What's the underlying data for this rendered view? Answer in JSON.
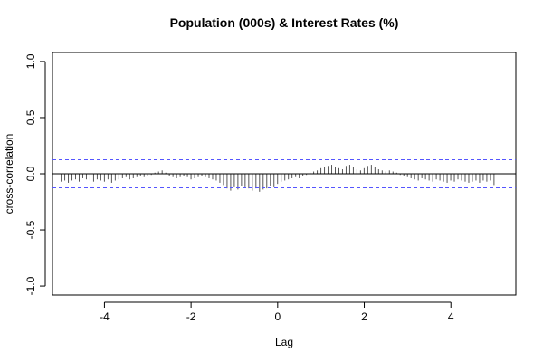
{
  "chart_data": {
    "type": "bar",
    "title": "Population (000s) & Interest Rates (%)",
    "xlabel": "Lag",
    "ylabel": "cross-correlation",
    "xlim": [
      -5.2,
      5.5
    ],
    "ylim": [
      -1.08,
      1.08
    ],
    "x_ticks": [
      -4,
      -2,
      0,
      2,
      4
    ],
    "y_ticks": [
      -1.0,
      -0.5,
      0.0,
      0.5,
      1.0
    ],
    "x_tick_labels": [
      "-4",
      "-2",
      "0",
      "2",
      "4"
    ],
    "y_tick_labels": [
      "-1.0",
      "-0.5",
      "0.0",
      "0.5",
      "1.0"
    ],
    "confidence_bound": 0.125,
    "lag_start": -5.0,
    "lag_step": 0.0833,
    "values": [
      -0.07,
      -0.06,
      -0.08,
      -0.06,
      -0.05,
      -0.07,
      -0.04,
      -0.05,
      -0.06,
      -0.07,
      -0.05,
      -0.06,
      -0.07,
      -0.05,
      -0.08,
      -0.06,
      -0.05,
      -0.04,
      -0.03,
      -0.05,
      -0.04,
      -0.03,
      -0.02,
      -0.03,
      -0.02,
      -0.01,
      0.01,
      0.02,
      0.03,
      0.01,
      -0.02,
      -0.03,
      -0.04,
      -0.03,
      -0.02,
      -0.03,
      -0.05,
      -0.04,
      -0.03,
      -0.02,
      -0.03,
      -0.04,
      -0.05,
      -0.06,
      -0.08,
      -0.1,
      -0.13,
      -0.15,
      -0.12,
      -0.14,
      -0.11,
      -0.12,
      -0.13,
      -0.15,
      -0.13,
      -0.16,
      -0.14,
      -0.13,
      -0.11,
      -0.12,
      -0.09,
      -0.07,
      -0.06,
      -0.05,
      -0.04,
      -0.03,
      -0.04,
      -0.02,
      -0.01,
      0.01,
      0.02,
      0.03,
      0.05,
      0.06,
      0.07,
      0.08,
      0.06,
      0.05,
      0.04,
      0.07,
      0.08,
      0.06,
      0.04,
      0.03,
      0.05,
      0.07,
      0.08,
      0.06,
      0.04,
      0.03,
      0.02,
      0.03,
      0.02,
      0.01,
      -0.01,
      -0.02,
      -0.03,
      -0.04,
      -0.05,
      -0.06,
      -0.04,
      -0.05,
      -0.06,
      -0.07,
      -0.05,
      -0.06,
      -0.07,
      -0.08,
      -0.06,
      -0.07,
      -0.05,
      -0.06,
      -0.07,
      -0.08,
      -0.07,
      -0.06,
      -0.08,
      -0.06,
      -0.07,
      -0.06,
      -0.1
    ],
    "colors": {
      "bar": "#555555",
      "zero_line": "#000000",
      "confidence_line": "#5555ff",
      "frame": "#000000"
    },
    "grid": false,
    "legend": "none"
  }
}
